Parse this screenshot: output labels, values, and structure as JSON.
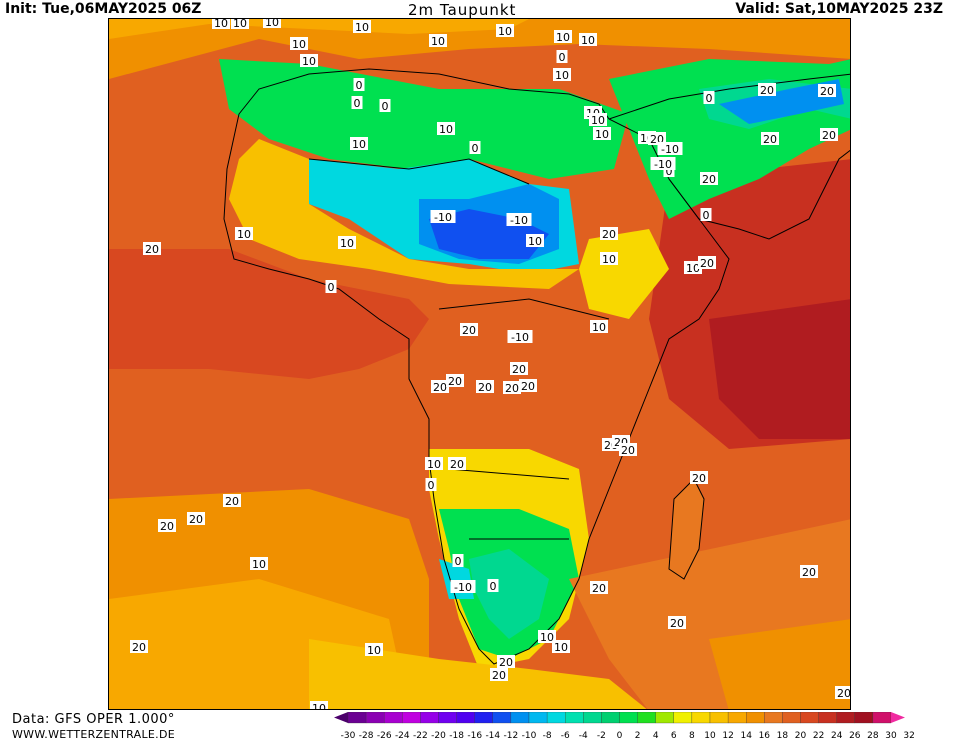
{
  "header": {
    "init": "Init: Tue,06MAY2025 06Z",
    "title": "2m Taupunkt",
    "valid": "Valid: Sat,10MAY2025 23Z"
  },
  "footer": {
    "data_source": "Data: GFS OPER 1.000°",
    "website": "WWW.WETTERZENTRALE.DE"
  },
  "legend": {
    "values": [
      "-30",
      "-28",
      "-26",
      "-24",
      "-22",
      "-20",
      "-18",
      "-16",
      "-14",
      "-12",
      "-10",
      "-8",
      "-6",
      "-4",
      "-2",
      "0",
      "2",
      "4",
      "6",
      "8",
      "10",
      "12",
      "14",
      "16",
      "18",
      "20",
      "22",
      "24",
      "26",
      "28",
      "30",
      "32"
    ],
    "colors": [
      "#4b006b",
      "#6b0093",
      "#8b00b3",
      "#a800d0",
      "#c000e0",
      "#9600e8",
      "#7000f0",
      "#5000f0",
      "#2020f0",
      "#1050f0",
      "#0090f0",
      "#00b8f0",
      "#00d8e0",
      "#00e0b0",
      "#00d890",
      "#00d070",
      "#00e050",
      "#20e020",
      "#a0e800",
      "#f0f000",
      "#f8d800",
      "#f8c000",
      "#f8a800",
      "#f09000",
      "#e87820",
      "#e06020",
      "#d84820",
      "#c83020",
      "#b01c20",
      "#a01020",
      "#d0106a",
      "#f02aa0"
    ]
  },
  "map_labels": [
    "10",
    "10",
    "10",
    "10",
    "10",
    "10",
    "10",
    "10",
    "0",
    "10",
    "10",
    "0",
    "10",
    "0",
    "0",
    "10",
    "10",
    "10",
    "10",
    "10",
    "20",
    "-10",
    "0",
    "0",
    "20",
    "20",
    "20",
    "-10",
    "0",
    "20",
    "-10",
    "10",
    "-10",
    "0",
    "10",
    "10",
    "20",
    "10",
    "10",
    "20",
    "0",
    "20",
    "-10",
    "10",
    "20",
    "20",
    "20",
    "20",
    "20",
    "20",
    "20",
    "20",
    "20",
    "20",
    "20",
    "20",
    "20",
    "20",
    "10",
    "20",
    "20",
    "20",
    "20",
    "0",
    "-10",
    "0",
    "0",
    "20",
    "20",
    "10",
    "10",
    "10",
    "20",
    "10",
    "10",
    "20",
    "20",
    "10"
  ],
  "map_legend_label": "2m Taupunkt"
}
